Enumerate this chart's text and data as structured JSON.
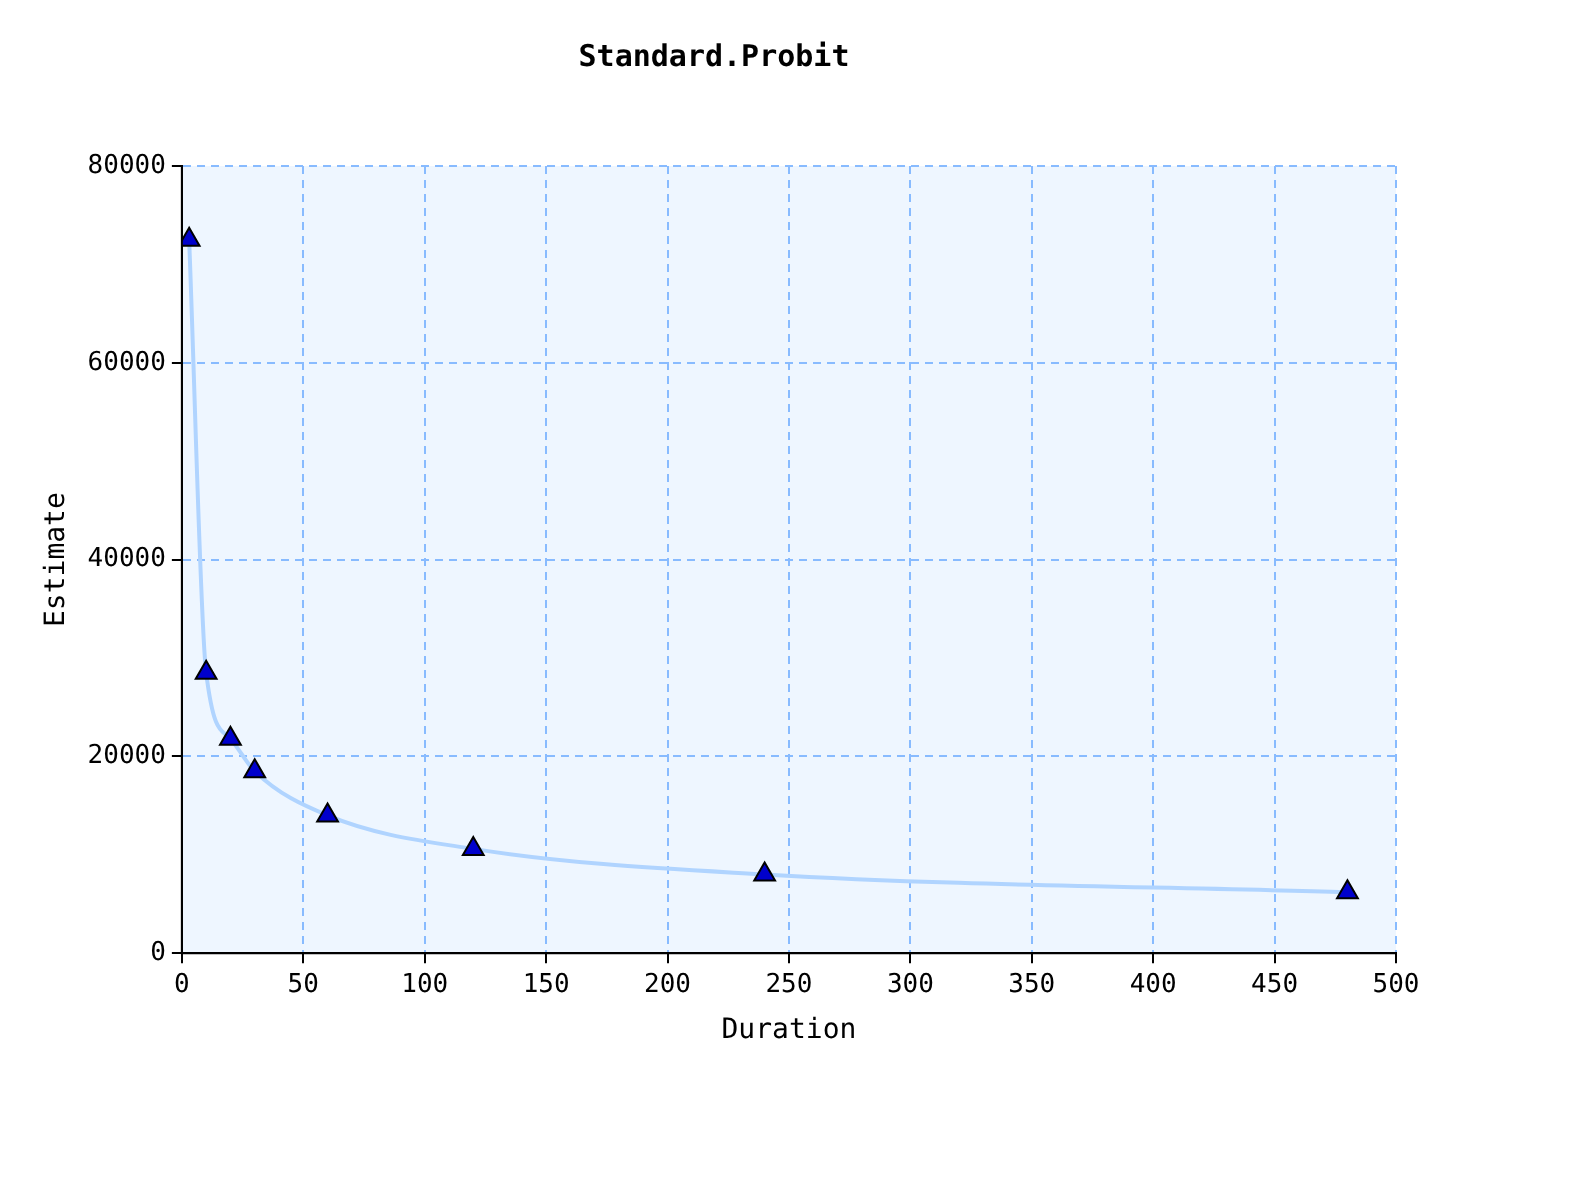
{
  "chart_data": {
    "type": "line",
    "title": "Standard.Probit",
    "xlabel": "Duration",
    "ylabel": "Estimate",
    "x": [
      3,
      10,
      20,
      30,
      60,
      120,
      240,
      480
    ],
    "series": [
      {
        "color": "#0000cc",
        "values": [
          72500,
          28500,
          21800,
          18500,
          14000,
          10600,
          8000,
          6200
        ]
      }
    ],
    "xlim": [
      0,
      500
    ],
    "xticks": [
      0,
      50,
      100,
      150,
      200,
      250,
      300,
      350,
      400,
      450,
      500
    ],
    "ylim": [
      0,
      80000
    ],
    "yticks": [
      0,
      20000,
      40000,
      60000,
      80000
    ],
    "grid": true,
    "legend": false,
    "marker": "triangle",
    "line_style": "solid"
  }
}
